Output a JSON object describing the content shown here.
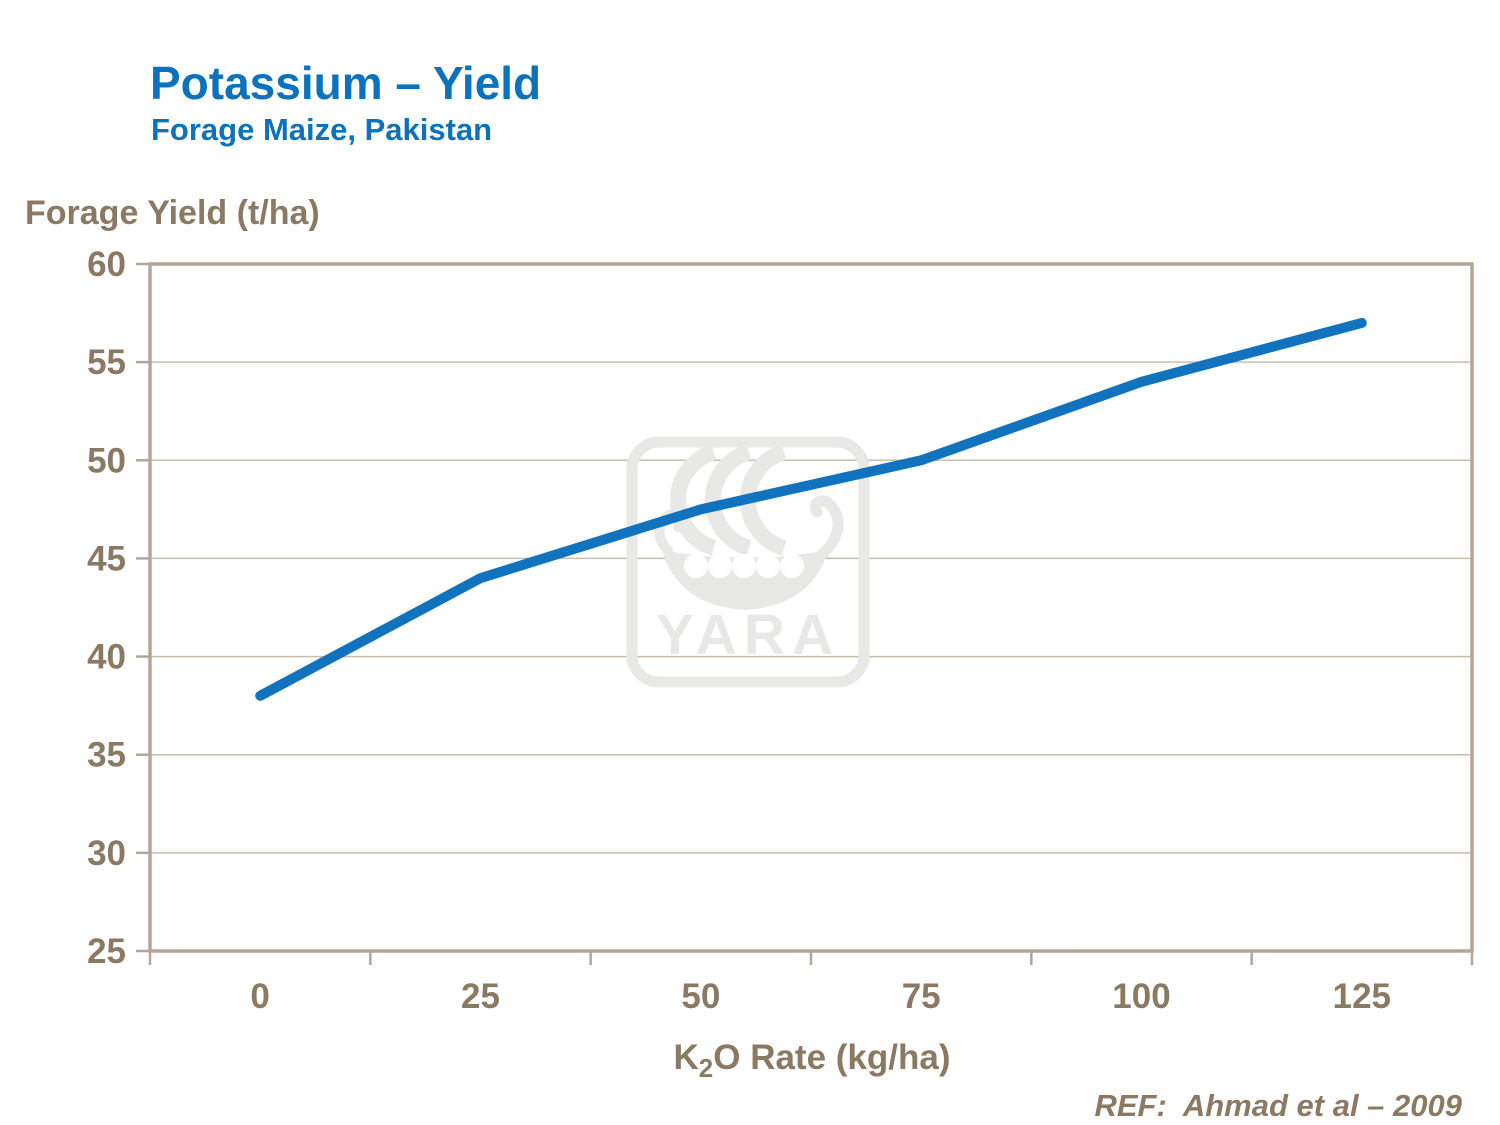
{
  "header": {
    "title": "Potassium – Yield",
    "subtitle": "Forage Maize, Pakistan"
  },
  "ref_note": "REF:  Ahmad et al – 2009",
  "watermark": {
    "label": "YARA"
  },
  "colors": {
    "title_blue": "#0D72BC",
    "line_blue": "#1173BE",
    "text_brown": "#8A7A63",
    "axis_border": "#B3A696",
    "gridline": "#C9BDAB",
    "watermark_gray": "#E8E8E7"
  },
  "chart_data": {
    "type": "line",
    "title": "Potassium – Yield",
    "subtitle": "Forage Maize, Pakistan",
    "xlabel": "K₂O Rate (kg/ha)",
    "xlabel_parts": {
      "base": "K",
      "sub": "2",
      "rest": "O Rate (kg/ha)"
    },
    "ylabel": "Forage Yield (t/ha)",
    "categories": [
      0,
      25,
      50,
      75,
      100,
      125
    ],
    "series": [
      {
        "name": "Forage Yield",
        "values": [
          38,
          44,
          47.5,
          50,
          54,
          57
        ]
      }
    ],
    "ylim": [
      25,
      60
    ],
    "yticks": [
      25,
      30,
      35,
      40,
      45,
      50,
      55,
      60
    ],
    "grid": true,
    "legend": false,
    "line_color": "#1173BE"
  }
}
